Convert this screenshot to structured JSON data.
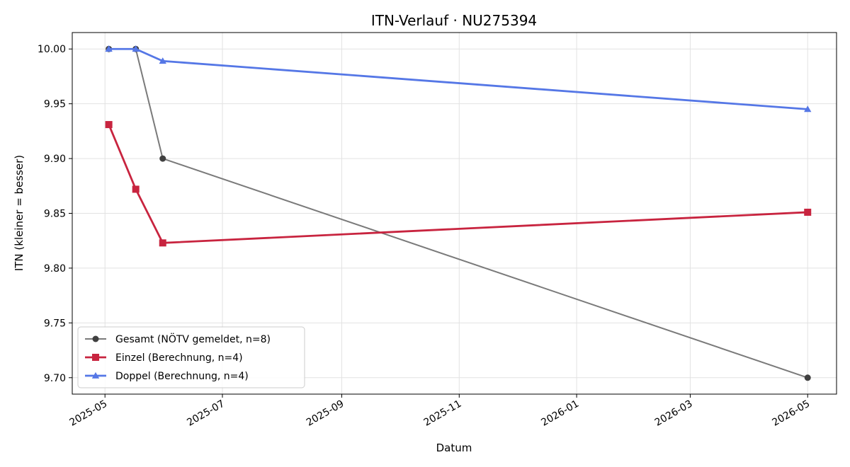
{
  "chart_data": {
    "type": "line",
    "title": "ITN-Verlauf · NU275394",
    "xlabel": "Datum",
    "ylabel": "ITN  (kleiner = besser)",
    "xlim": [
      "2025-04-14",
      "2026-05-16"
    ],
    "ylim": [
      9.685,
      10.015
    ],
    "x_ticks": [
      "2025-05-01",
      "2025-07-01",
      "2025-09-01",
      "2025-11-01",
      "2026-01-01",
      "2026-03-01",
      "2026-05-01"
    ],
    "x_tick_labels": [
      "2025-05",
      "2025-07",
      "2025-09",
      "2025-11",
      "2026-01",
      "2026-03",
      "2026-05"
    ],
    "y_ticks": [
      9.7,
      9.75,
      9.8,
      9.85,
      9.9,
      9.95,
      10.0
    ],
    "y_tick_labels": [
      "9.70",
      "9.75",
      "9.80",
      "9.85",
      "9.90",
      "9.95",
      "10.00"
    ],
    "grid": true,
    "legend_position": "lower-left",
    "series": [
      {
        "name": "Gesamt (NÖTV gemeldet, n=8)",
        "color": "#7a7a7a",
        "marker_color": "#404040",
        "marker": "circle",
        "x": [
          "2025-05-03",
          "2025-05-17",
          "2025-05-31",
          "2026-05-01"
        ],
        "y": [
          10.0,
          10.0,
          9.9,
          9.7
        ]
      },
      {
        "name": "Einzel (Berechnung, n=4)",
        "color": "#c8243f",
        "marker_color": "#c8243f",
        "marker": "square",
        "x": [
          "2025-05-03",
          "2025-05-17",
          "2025-05-31",
          "2026-05-01"
        ],
        "y": [
          9.931,
          9.872,
          9.823,
          9.851
        ]
      },
      {
        "name": "Doppel (Berechnung, n=4)",
        "color": "#5577e6",
        "marker_color": "#5577e6",
        "marker": "triangle",
        "x": [
          "2025-05-03",
          "2025-05-17",
          "2025-05-31",
          "2026-05-01"
        ],
        "y": [
          10.0,
          10.0,
          9.989,
          9.945
        ]
      }
    ]
  }
}
